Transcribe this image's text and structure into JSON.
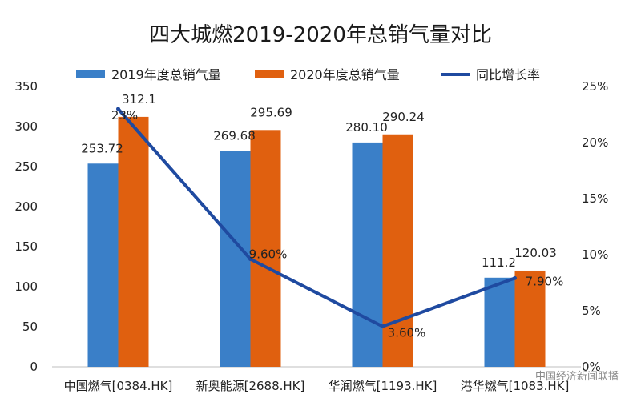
{
  "chart_data": {
    "type": "bar",
    "title": "四大城燃2019-2020年总销气量对比",
    "categories": [
      "中国燃气[0384.HK]",
      "新奥能源[2688.HK]",
      "华润燃气[1193.HK]",
      "港华燃气[1083.HK]"
    ],
    "series": [
      {
        "name": "2019年度总销气量",
        "type": "bar",
        "axis": "left",
        "color": "#3a7fc8",
        "values": [
          253.72,
          269.68,
          280.1,
          111.2
        ],
        "labels": [
          "253.72",
          "269.68",
          "280.10",
          "111.2"
        ]
      },
      {
        "name": "2020年度总销气量",
        "type": "bar",
        "axis": "left",
        "color": "#e0600f",
        "values": [
          312.1,
          295.69,
          290.24,
          120.03
        ],
        "labels": [
          "312.1",
          "295.69",
          "290.24",
          "120.03"
        ]
      },
      {
        "name": "同比增长率",
        "type": "line",
        "axis": "right",
        "color": "#1f4aa0",
        "values": [
          23,
          9.6,
          3.6,
          7.9
        ],
        "labels": [
          "23%",
          "9.60%",
          "3.60%",
          "7.90%"
        ]
      }
    ],
    "y_left": {
      "min": 0,
      "max": 350,
      "step": 50,
      "ticks": [
        "0",
        "50",
        "100",
        "150",
        "200",
        "250",
        "300",
        "350"
      ]
    },
    "y_right": {
      "min": 0,
      "max": 25,
      "step": 5,
      "ticks": [
        "0%",
        "5%",
        "10%",
        "15%",
        "20%",
        "25%"
      ]
    },
    "legend_position": "top",
    "grid": false
  },
  "watermark": "中国经济新闻联播"
}
